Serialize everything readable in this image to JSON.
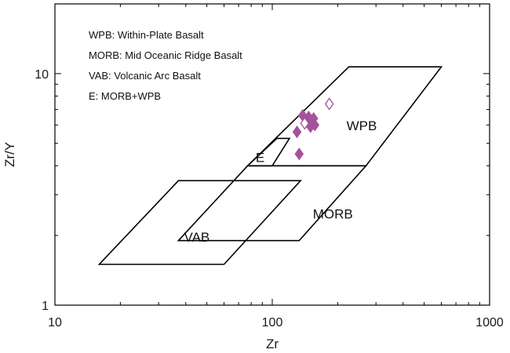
{
  "chart_data": {
    "type": "scatter",
    "xlabel": "Zr",
    "ylabel": "Zr/Y",
    "x_scale": "log",
    "y_scale": "log",
    "xlim": [
      10,
      1000
    ],
    "ylim": [
      1,
      20
    ],
    "x_ticks": [
      {
        "value": 10,
        "label": "10"
      },
      {
        "value": 100,
        "label": "100"
      },
      {
        "value": 1000,
        "label": "1000"
      }
    ],
    "y_ticks": [
      {
        "value": 1,
        "label": "1"
      },
      {
        "value": 10,
        "label": "10"
      }
    ],
    "legend_items": [
      "WPB: Within-Plate Basalt",
      "MORB: Mid Oceanic Ridge Basalt",
      "VAB: Volcanic Arc Basalt",
      "E: MORB+WPB"
    ],
    "legend_position": "top-left",
    "fields": [
      {
        "label": "WPB",
        "label_at": [
          258,
          5.9
        ],
        "vertices": [
          [
            77,
            4.0
          ],
          [
            270,
            4.0
          ],
          [
            600,
            10.7
          ],
          [
            225,
            10.7
          ]
        ]
      },
      {
        "label": "MORB",
        "label_at": [
          190,
          2.45
        ],
        "vertices": [
          [
            37,
            1.9
          ],
          [
            133,
            1.9
          ],
          [
            270,
            4.0
          ],
          [
            77,
            4.0
          ]
        ]
      },
      {
        "label": "VAB",
        "label_at": [
          45,
          1.95
        ],
        "vertices": [
          [
            16,
            1.5
          ],
          [
            60,
            1.5
          ],
          [
            135,
            3.45
          ],
          [
            37,
            3.45
          ]
        ]
      },
      {
        "label": "E",
        "label_at": [
          88,
          4.3
        ],
        "vertices": [
          [
            77,
            4.0
          ],
          [
            100,
            4.0
          ],
          [
            120,
            5.25
          ],
          [
            105,
            5.25
          ]
        ]
      }
    ],
    "points": [
      {
        "x": 138,
        "y": 6.6,
        "filled": true
      },
      {
        "x": 143,
        "y": 6.2,
        "filled": true
      },
      {
        "x": 150,
        "y": 5.9,
        "filled": true
      },
      {
        "x": 155,
        "y": 6.4,
        "filled": true
      },
      {
        "x": 157,
        "y": 6.0,
        "filled": true
      },
      {
        "x": 147,
        "y": 6.5,
        "filled": true
      },
      {
        "x": 130,
        "y": 5.6,
        "filled": true
      },
      {
        "x": 133,
        "y": 4.5,
        "filled": true
      },
      {
        "x": 141,
        "y": 6.1,
        "filled": false
      },
      {
        "x": 183,
        "y": 7.4,
        "filled": false
      }
    ],
    "marker": "diamond",
    "marker_color": "#a5529a",
    "line_color": "#000000"
  }
}
